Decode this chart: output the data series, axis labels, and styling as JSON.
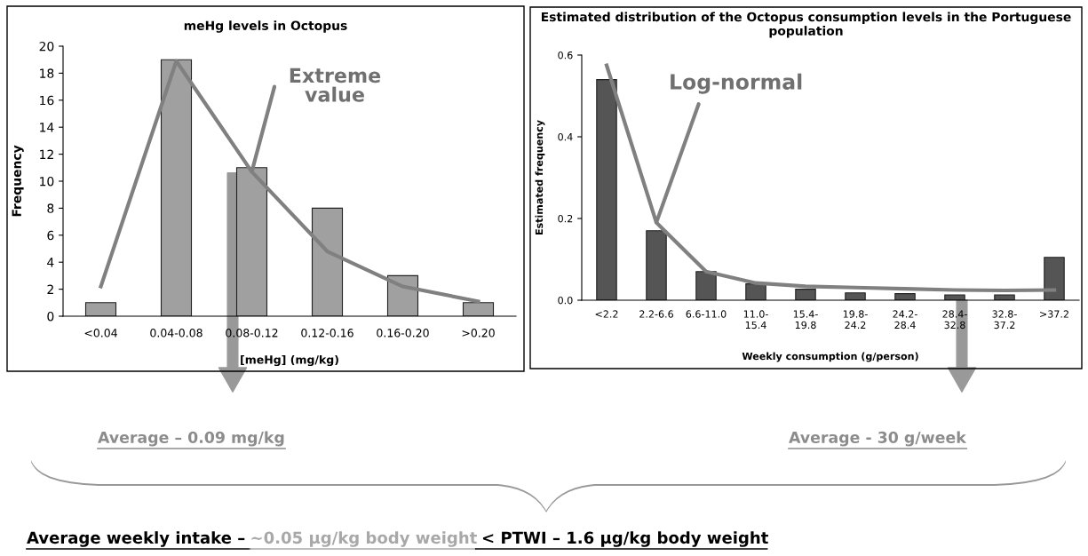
{
  "chart_data": [
    {
      "type": "bar",
      "title": "meHg levels in Octopus",
      "xlabel": "[meHg] (mg/kg)",
      "ylabel": "Frequency",
      "categories": [
        "<0.04",
        "0.04-0.08",
        "0.08-0.12",
        "0.12-0.16",
        "0.16-0.20",
        ">0.20"
      ],
      "series": [
        {
          "type": "bar",
          "color": "#a0a0a0",
          "values": [
            1,
            19,
            11,
            8,
            3,
            1
          ]
        },
        {
          "type": "line",
          "color": "#808080",
          "values": [
            2.2,
            18.9,
            10.7,
            4.8,
            2.2,
            1.1
          ]
        }
      ],
      "ylim": [
        0,
        20
      ],
      "yticks": [
        0,
        2,
        4,
        6,
        8,
        10,
        12,
        14,
        16,
        18,
        20
      ],
      "grid": false,
      "legend": false,
      "annotations": [
        {
          "text": "Extreme value",
          "x": "0.08-0.12",
          "y": 10.7
        }
      ]
    },
    {
      "type": "bar",
      "title": "Estimated distribution of the Octopus consumption levels in the Portuguese population",
      "xlabel": "Weekly consumption (g/person)",
      "ylabel": "Estimated frequency",
      "categories": [
        "<2.2",
        "2.2-6.6",
        "6.6-11.0",
        "11.0-\n15.4",
        "15.4-\n19.8",
        "19.8-\n24.2",
        "24.2-\n28.4",
        "28.4-\n32.8",
        "32.8-\n37.2",
        ">37.2"
      ],
      "series": [
        {
          "type": "bar",
          "color": "#555555",
          "values": [
            0.54,
            0.17,
            0.07,
            0.04,
            0.027,
            0.018,
            0.016,
            0.013,
            0.013,
            0.105
          ]
        },
        {
          "type": "line",
          "color": "#808080",
          "values": [
            0.575,
            0.19,
            0.07,
            0.042,
            0.034,
            0.031,
            0.028,
            0.025,
            0.024,
            0.025
          ]
        }
      ],
      "ylim": [
        0,
        0.6
      ],
      "yticks": [
        {
          "value": 0,
          "label": "0.0"
        },
        {
          "value": 0.2,
          "label": "0.2"
        },
        {
          "value": 0.4,
          "label": "0.4"
        },
        {
          "value": 0.6,
          "label": "0.6"
        }
      ],
      "grid": false,
      "legend": false,
      "annotations": [
        {
          "text": "Log-normal",
          "x": "2.2-6.6",
          "y": 0.19
        }
      ]
    },
    {
      "type": "other",
      "annotations": [
        "Average – 0.09 mg/kg",
        "Average - 30 g/week",
        "Average weekly intake – ",
        "~0.05 μg/kg body weight",
        " < PTWI – 1.6 μg/kg body weight"
      ]
    }
  ]
}
